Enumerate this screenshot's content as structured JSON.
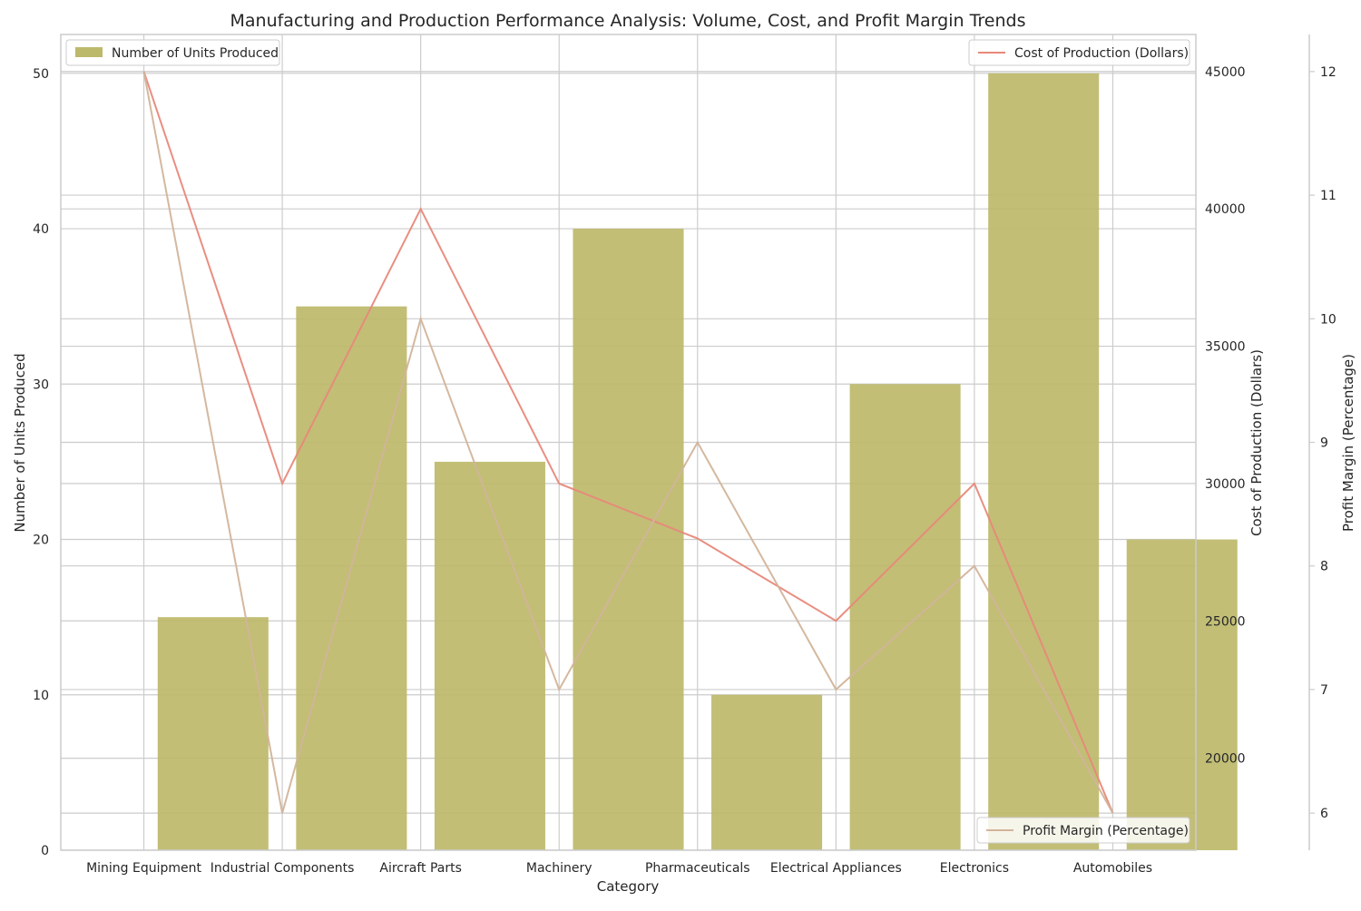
{
  "chart_data": {
    "type": "bar",
    "title": "Manufacturing and Production Performance Analysis: Volume, Cost, and Profit Margin Trends",
    "xlabel": "Category",
    "categories": [
      "Mining Equipment",
      "Industrial Components",
      "Aircraft Parts",
      "Machinery",
      "Pharmaceuticals",
      "Electrical Appliances",
      "Electronics",
      "Automobiles"
    ],
    "series": [
      {
        "name": "Number of Units Produced",
        "type": "bar",
        "axis": "left",
        "values": [
          15,
          35,
          25,
          40,
          10,
          30,
          50,
          20
        ]
      },
      {
        "name": "Cost of Production (Dollars)",
        "type": "line",
        "axis": "right",
        "values": [
          45000,
          30000,
          40000,
          30000,
          28000,
          25000,
          30000,
          18000
        ]
      },
      {
        "name": "Profit Margin (Percentage)",
        "type": "line",
        "axis": "right2",
        "values": [
          12,
          6,
          10,
          7,
          9,
          7,
          8,
          6
        ]
      }
    ],
    "axes": {
      "left": {
        "label": "Number of Units Produced",
        "ylim": [
          0,
          52.5
        ],
        "ticks": [
          0,
          10,
          20,
          30,
          40,
          50
        ]
      },
      "right": {
        "label": "Cost of Production (Dollars)",
        "ylim": [
          16650,
          46350
        ],
        "ticks": [
          20000,
          25000,
          30000,
          35000,
          40000,
          45000
        ]
      },
      "right2": {
        "label": "Profit Margin (Percentage)",
        "ylim": [
          5.7,
          12.3
        ],
        "ticks": [
          6,
          7,
          8,
          9,
          10,
          11,
          12
        ]
      }
    },
    "grid": true,
    "legends": {
      "bars": "top-left",
      "cost": "top-right",
      "margin": "bottom-right"
    },
    "colors": {
      "bar": "#bdb96a",
      "cost": "#e8887a",
      "margin": "#d2b49a",
      "grid": "#cccccc",
      "spine": "#cccccc"
    }
  }
}
